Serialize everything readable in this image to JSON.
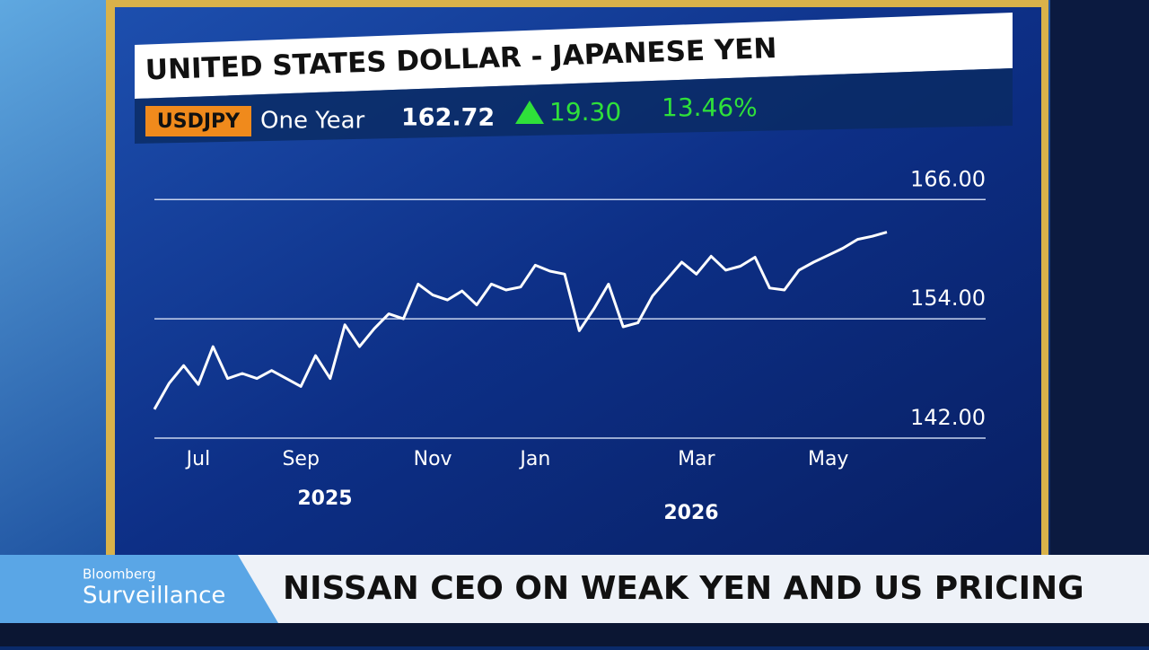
{
  "chart_data": {
    "type": "line",
    "title": "UNITED STATES DOLLAR - JAPANESE YEN",
    "ticker": "USDJPY",
    "period": "One Year",
    "price": "162.72",
    "change": "19.30",
    "change_pct": "13.46%",
    "categories": [
      null,
      null,
      null,
      "Jul",
      null,
      null,
      null,
      null,
      null,
      null,
      "Sep",
      null,
      null,
      null,
      null,
      null,
      null,
      null,
      null,
      "Nov",
      null,
      null,
      null,
      null,
      null,
      null,
      "Jan",
      null,
      null,
      null,
      null,
      null,
      null,
      null,
      null,
      null,
      null,
      "Mar",
      null,
      null,
      null,
      null,
      null,
      null,
      null,
      null,
      "May",
      null,
      null,
      null,
      null
    ],
    "years": [
      "2025",
      "2026"
    ],
    "values": [
      144.9,
      147.5,
      149.3,
      147.4,
      151.2,
      148.0,
      148.5,
      148.0,
      148.8,
      148.0,
      147.2,
      150.3,
      148.0,
      153.4,
      151.2,
      153.0,
      154.5,
      154.0,
      157.5,
      156.4,
      155.9,
      156.8,
      155.4,
      157.5,
      156.9,
      157.2,
      159.4,
      158.8,
      158.5,
      152.8,
      155.0,
      157.5,
      153.2,
      153.6,
      156.3,
      158.0,
      159.7,
      158.5,
      160.3,
      158.9,
      159.3,
      160.2,
      157.1,
      156.9,
      158.9,
      159.7,
      160.4,
      161.1,
      162.0,
      162.3,
      162.72
    ],
    "color": "#ffffff",
    "ylim": [
      142,
      170
    ],
    "yticks": [
      {
        "value": 142,
        "label": "142.00"
      },
      {
        "value": 154,
        "label": "154.00"
      },
      {
        "value": 166,
        "label": "166.00"
      }
    ],
    "grid": true
  },
  "banner": {
    "brand": "Bloomberg",
    "show": "Surveillance",
    "headline": "NISSAN CEO ON WEAK YEN AND US PRICING"
  }
}
